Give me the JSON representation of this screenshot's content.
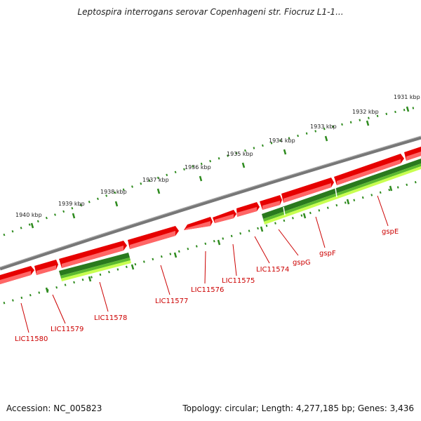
{
  "title": "Leptospira interrogans serovar Copenhageni str. Fiocruz L1-1...",
  "accession_text": "Accession: NC_005823",
  "summary_text": "Topology: circular; Length: 4,277,185 bp; Genes: 3,436",
  "kbp_labels": [
    "1931 kbp",
    "1932 kbp",
    "1933 kbp",
    "1934 kbp",
    "1935 kbp",
    "1936 kbp",
    "1937 kbp",
    "1938 kbp",
    "1939 kbp",
    "1940 kbp"
  ],
  "gene_labels": [
    "gspE",
    "gspF",
    "gspG",
    "LIC11574",
    "LIC11575",
    "LIC11576",
    "LIC11577",
    "LIC11578",
    "LIC11579",
    "LIC11580"
  ],
  "colors": {
    "backbone": "#808080",
    "cds_red": "#ee0000",
    "cds_red_light": "#ff7070",
    "cds_green_dark": "#2a7a1e",
    "cds_green": "#4cae2e",
    "cds_green_light": "#c8ff50",
    "tick_green": "#2e8b1e",
    "label_red": "#cc0000"
  }
}
